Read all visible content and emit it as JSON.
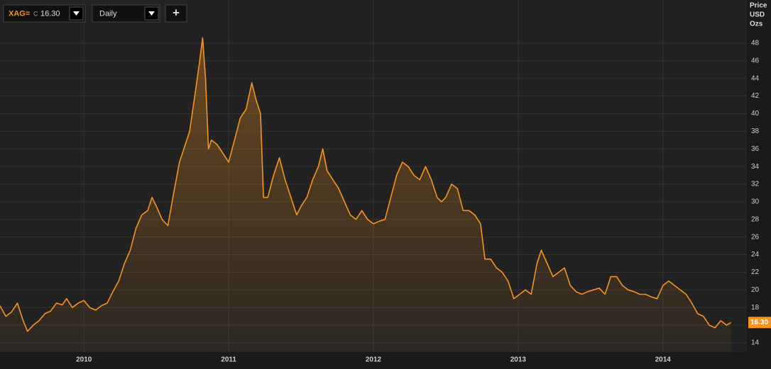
{
  "toolbar": {
    "symbol": "XAG=",
    "close_prefix": "C",
    "close": "16.30",
    "interval": "Daily",
    "add": "+"
  },
  "chart_data": {
    "type": "line",
    "color": "#f7941d",
    "grid": true,
    "y_label": [
      "Price",
      "USD",
      "Ozs"
    ],
    "last_value_label": "16.30",
    "xlim": [
      2009.92,
      2015.08
    ],
    "xticks": [
      {
        "value": 2010.5,
        "label": "2010"
      },
      {
        "value": 2011.5,
        "label": "2011"
      },
      {
        "value": 2012.5,
        "label": "2012"
      },
      {
        "value": 2013.5,
        "label": "2013"
      },
      {
        "value": 2014.5,
        "label": "2014"
      }
    ],
    "ylim": [
      12.95,
      52.9
    ],
    "yticks": [
      14,
      16,
      18,
      20,
      22,
      24,
      26,
      28,
      30,
      32,
      34,
      36,
      38,
      40,
      42,
      44,
      46,
      48
    ],
    "x": [
      2009.92,
      2009.96,
      2010.0,
      2010.04,
      2010.08,
      2010.11,
      2010.15,
      2010.19,
      2010.23,
      2010.27,
      2010.31,
      2010.35,
      2010.38,
      2010.42,
      2010.46,
      2010.5,
      2010.54,
      2010.58,
      2010.62,
      2010.66,
      2010.7,
      2010.74,
      2010.78,
      2010.82,
      2010.86,
      2010.9,
      2010.94,
      2010.97,
      2011.0,
      2011.04,
      2011.08,
      2011.12,
      2011.16,
      2011.2,
      2011.23,
      2011.27,
      2011.3,
      2011.32,
      2011.34,
      2011.36,
      2011.38,
      2011.42,
      2011.46,
      2011.5,
      2011.54,
      2011.58,
      2011.62,
      2011.66,
      2011.69,
      2011.72,
      2011.74,
      2011.77,
      2011.81,
      2011.85,
      2011.89,
      2011.93,
      2011.97,
      2012.0,
      2012.04,
      2012.08,
      2012.12,
      2012.15,
      2012.18,
      2012.22,
      2012.26,
      2012.3,
      2012.34,
      2012.38,
      2012.42,
      2012.46,
      2012.5,
      2012.54,
      2012.58,
      2012.62,
      2012.66,
      2012.7,
      2012.74,
      2012.78,
      2012.82,
      2012.86,
      2012.9,
      2012.94,
      2012.97,
      2013.0,
      2013.04,
      2013.08,
      2013.12,
      2013.16,
      2013.2,
      2013.24,
      2013.27,
      2013.31,
      2013.35,
      2013.39,
      2013.43,
      2013.47,
      2013.51,
      2013.55,
      2013.59,
      2013.63,
      2013.66,
      2013.7,
      2013.74,
      2013.78,
      2013.82,
      2013.86,
      2013.9,
      2013.94,
      2013.98,
      2014.02,
      2014.06,
      2014.1,
      2014.14,
      2014.18,
      2014.22,
      2014.26,
      2014.3,
      2014.34,
      2014.38,
      2014.42,
      2014.46,
      2014.5,
      2014.54,
      2014.58,
      2014.62,
      2014.66,
      2014.7,
      2014.74,
      2014.78,
      2014.82,
      2014.86,
      2014.9,
      2014.94,
      2014.97
    ],
    "values": [
      18.2,
      17.0,
      17.5,
      18.5,
      16.5,
      15.3,
      16.0,
      16.5,
      17.3,
      17.6,
      18.5,
      18.3,
      19.0,
      18.0,
      18.5,
      18.8,
      18.0,
      17.7,
      18.2,
      18.5,
      19.8,
      21.0,
      23.0,
      24.5,
      27.0,
      28.5,
      29.0,
      30.5,
      29.5,
      28.0,
      27.3,
      31.0,
      34.5,
      36.5,
      38.0,
      42.5,
      46.0,
      48.6,
      44.0,
      36.0,
      37.0,
      36.5,
      35.5,
      34.5,
      37.0,
      39.5,
      40.5,
      43.5,
      41.5,
      40.0,
      30.5,
      30.5,
      33.0,
      35.0,
      32.5,
      30.5,
      28.5,
      29.5,
      30.5,
      32.5,
      34.0,
      36.0,
      33.5,
      32.5,
      31.5,
      30.0,
      28.5,
      28.0,
      29.0,
      28.0,
      27.5,
      27.8,
      28.0,
      30.5,
      33.0,
      34.5,
      34.0,
      33.0,
      32.5,
      34.0,
      32.5,
      30.5,
      30.0,
      30.5,
      32.0,
      31.5,
      29.0,
      29.0,
      28.5,
      27.5,
      23.5,
      23.5,
      22.5,
      22.0,
      21.0,
      19.0,
      19.5,
      20.0,
      19.5,
      23.0,
      24.5,
      23.0,
      21.5,
      22.0,
      22.5,
      20.5,
      19.8,
      19.5,
      19.8,
      20.0,
      20.2,
      19.5,
      21.5,
      21.5,
      20.5,
      20.0,
      19.8,
      19.5,
      19.5,
      19.2,
      19.0,
      20.5,
      21.0,
      20.5,
      20.0,
      19.5,
      18.5,
      17.3,
      17.0,
      16.0,
      15.7,
      16.5,
      16.0,
      16.3
    ]
  }
}
